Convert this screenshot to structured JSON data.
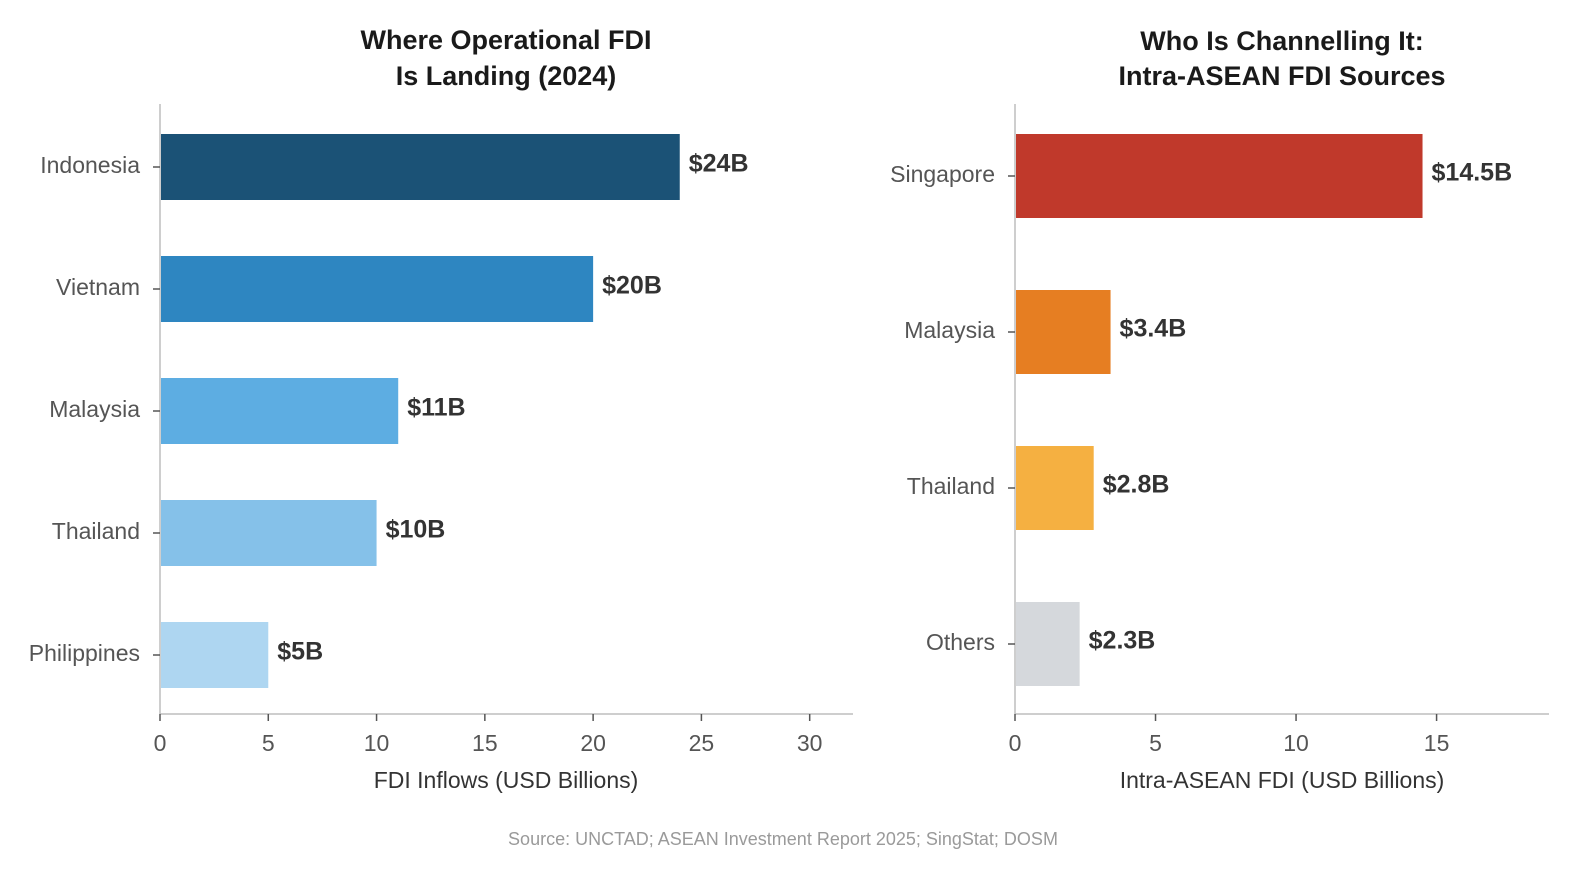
{
  "chart_data": [
    {
      "type": "bar",
      "orientation": "horizontal",
      "title": [
        "Where Operational FDI",
        "Is Landing (2024)"
      ],
      "categories": [
        "Indonesia",
        "Vietnam",
        "Malaysia",
        "Thailand",
        "Philippines"
      ],
      "values": [
        24,
        20,
        11,
        10,
        5
      ],
      "value_labels": [
        "$24B",
        "$20B",
        "$11B",
        "$10B",
        "$5B"
      ],
      "colors": [
        "#1b5276",
        "#2e86c1",
        "#5dade2",
        "#85c1e9",
        "#aed6f1"
      ],
      "xlabel": "FDI Inflows (USD Billions)",
      "xlim": [
        0,
        32
      ],
      "xticks": [
        0,
        5,
        10,
        15,
        20,
        25,
        30
      ],
      "xtick_labels": [
        "0",
        "5",
        "10",
        "15",
        "20",
        "25",
        "30"
      ]
    },
    {
      "type": "bar",
      "orientation": "horizontal",
      "title": [
        "Who Is Channelling It:",
        "Intra-ASEAN FDI Sources"
      ],
      "categories": [
        "Singapore",
        "Malaysia",
        "Thailand",
        "Others"
      ],
      "values": [
        14.5,
        3.4,
        2.8,
        2.3
      ],
      "value_labels": [
        "$14.5B",
        "$3.4B",
        "$2.8B",
        "$2.3B"
      ],
      "colors": [
        "#c0392b",
        "#e67e22",
        "#f5b041",
        "#d5d8dc"
      ],
      "xlabel": "Intra-ASEAN FDI (USD Billions)",
      "xlim": [
        0,
        19
      ],
      "xticks": [
        0,
        5,
        10,
        15
      ],
      "xtick_labels": [
        "0",
        "5",
        "10",
        "15"
      ]
    }
  ],
  "source": "Source: UNCTAD; ASEAN Investment Report 2025; SingStat; DOSM"
}
